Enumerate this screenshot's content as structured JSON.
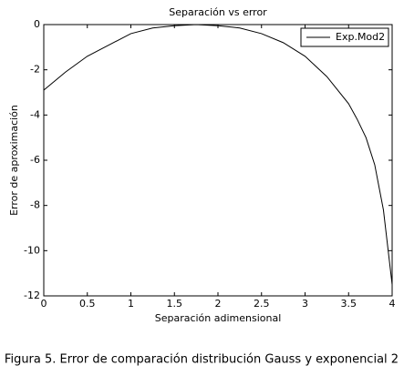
{
  "chart_data": {
    "type": "line",
    "title": "Separación vs error",
    "xlabel": "Separación adimensional",
    "ylabel": "Error de aproximación",
    "caption": "Figura 5. Error de comparación distribución Gauss y exponencial 2",
    "x": [
      0,
      0.25,
      0.5,
      0.75,
      1,
      1.25,
      1.5,
      1.75,
      2,
      2.25,
      2.5,
      2.75,
      3,
      3.25,
      3.5,
      3.6,
      3.7,
      3.8,
      3.9,
      4
    ],
    "series": [
      {
        "name": "Exp.Mod2",
        "color": "#000000",
        "values": [
          -2.9,
          -2.1,
          -1.4,
          -0.9,
          -0.4,
          -0.15,
          -0.05,
          0,
          -0.05,
          -0.15,
          -0.4,
          -0.8,
          -1.4,
          -2.3,
          -3.5,
          -4.2,
          -5.0,
          -6.2,
          -8.2,
          -11.5
        ]
      }
    ],
    "xlim": [
      0,
      4
    ],
    "xticks": [
      0,
      0.5,
      1,
      1.5,
      2,
      2.5,
      3,
      3.5,
      4
    ],
    "ylim": [
      -12,
      0
    ],
    "yticks": [
      0,
      -2,
      -4,
      -6,
      -8,
      -10,
      -12
    ],
    "grid": false,
    "legend": "upper right"
  }
}
